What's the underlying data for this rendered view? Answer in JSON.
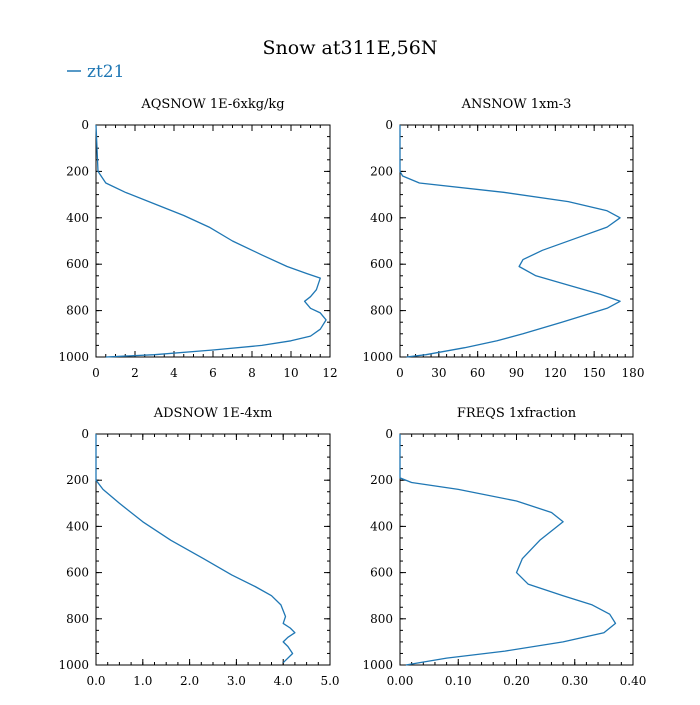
{
  "title": "Snow at311E,56N",
  "legend": [
    {
      "label": "zt21",
      "color": "#1f77b4"
    }
  ],
  "chart_data": [
    {
      "type": "line",
      "title": "AQSNOW  1E-6xkg/kg",
      "xlim": [
        0,
        12
      ],
      "ylim": [
        1000,
        0
      ],
      "xticks": [
        "0",
        "2",
        "4",
        "6",
        "8",
        "10",
        "12"
      ],
      "xtickvals": [
        0,
        2,
        4,
        6,
        8,
        10,
        12
      ],
      "xminor": 0.5,
      "yticks": [
        "0",
        "200",
        "400",
        "600",
        "800",
        "1000"
      ],
      "ytickvals": [
        0,
        200,
        400,
        600,
        800,
        1000
      ],
      "yminor": 50,
      "series": [
        {
          "name": "zt21",
          "x": [
            0,
            0.1,
            0.5,
            1.5,
            3,
            4.5,
            5.8,
            7,
            8.5,
            9.8,
            10.8,
            11.5,
            11.3,
            11,
            10.7,
            11,
            11.5,
            11.8,
            11.5,
            11,
            10,
            8.5,
            6,
            3,
            0.5
          ],
          "y": [
            0,
            200,
            250,
            290,
            340,
            390,
            440,
            500,
            560,
            610,
            640,
            660,
            710,
            740,
            760,
            790,
            810,
            840,
            880,
            910,
            930,
            950,
            970,
            990,
            1000
          ]
        }
      ]
    },
    {
      "type": "line",
      "title": "ANSNOW  1xm-3",
      "xlim": [
        0,
        180
      ],
      "ylim": [
        1000,
        0
      ],
      "xticks": [
        "0",
        "30",
        "60",
        "90",
        "120",
        "150",
        "180"
      ],
      "xtickvals": [
        0,
        30,
        60,
        90,
        120,
        150,
        180
      ],
      "xminor": 6,
      "yticks": [
        "0",
        "200",
        "400",
        "600",
        "800",
        "1000"
      ],
      "ytickvals": [
        0,
        200,
        400,
        600,
        800,
        1000
      ],
      "yminor": 50,
      "series": [
        {
          "name": "zt21",
          "x": [
            0,
            0,
            2,
            15,
            80,
            130,
            160,
            170,
            160,
            135,
            110,
            95,
            92,
            105,
            130,
            155,
            170,
            160,
            125,
            95,
            75,
            50,
            20,
            5
          ],
          "y": [
            0,
            200,
            220,
            250,
            290,
            330,
            370,
            400,
            440,
            490,
            540,
            580,
            610,
            650,
            690,
            730,
            760,
            790,
            850,
            900,
            930,
            960,
            990,
            1000
          ]
        }
      ]
    },
    {
      "type": "line",
      "title": "ADSNOW  1E-4xm",
      "xlim": [
        0,
        5
      ],
      "ylim": [
        1000,
        0
      ],
      "xticks": [
        "0.0",
        "1.0",
        "2.0",
        "3.0",
        "4.0",
        "5.0"
      ],
      "xtickvals": [
        0,
        1,
        2,
        3,
        4,
        5
      ],
      "xminor": 0.25,
      "yticks": [
        "0",
        "200",
        "400",
        "600",
        "800",
        "1000"
      ],
      "ytickvals": [
        0,
        200,
        400,
        600,
        800,
        1000
      ],
      "yminor": 50,
      "series": [
        {
          "name": "zt21",
          "x": [
            0,
            0,
            0.15,
            0.5,
            1,
            1.6,
            2.3,
            2.9,
            3.4,
            3.75,
            3.95,
            4.05,
            4,
            4.15,
            4.25,
            4.1,
            4,
            4.1,
            4.2,
            4
          ],
          "y": [
            0,
            200,
            240,
            300,
            380,
            460,
            540,
            610,
            660,
            700,
            740,
            790,
            820,
            840,
            860,
            880,
            900,
            920,
            950,
            990
          ]
        }
      ]
    },
    {
      "type": "line",
      "title": "FREQS  1xfraction",
      "xlim": [
        0,
        0.4
      ],
      "ylim": [
        1000,
        0
      ],
      "xticks": [
        "0.00",
        "0.10",
        "0.20",
        "0.30",
        "0.40"
      ],
      "xtickvals": [
        0,
        0.1,
        0.2,
        0.3,
        0.4
      ],
      "xminor": 0.02,
      "yticks": [
        "0",
        "200",
        "400",
        "600",
        "800",
        "1000"
      ],
      "ytickvals": [
        0,
        200,
        400,
        600,
        800,
        1000
      ],
      "yminor": 50,
      "series": [
        {
          "name": "zt21",
          "x": [
            0,
            0,
            0.02,
            0.1,
            0.2,
            0.26,
            0.28,
            0.27,
            0.24,
            0.21,
            0.2,
            0.22,
            0.28,
            0.33,
            0.36,
            0.37,
            0.35,
            0.28,
            0.18,
            0.08,
            0.01
          ],
          "y": [
            0,
            190,
            210,
            240,
            290,
            340,
            380,
            400,
            460,
            540,
            600,
            650,
            700,
            740,
            780,
            820,
            860,
            900,
            940,
            970,
            1000
          ]
        }
      ]
    }
  ]
}
